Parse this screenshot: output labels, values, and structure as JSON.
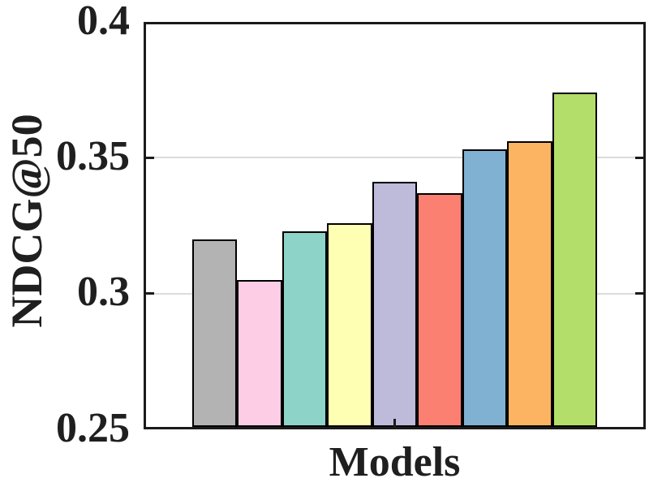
{
  "chart_data": {
    "type": "bar",
    "title": "",
    "xlabel": "Models",
    "ylabel": "NDCG@50",
    "ylim": [
      0.25,
      0.4
    ],
    "yticks": [
      0.25,
      0.3,
      0.35,
      0.4
    ],
    "ytick_labels": [
      "0.25",
      "0.3",
      "0.35",
      "0.4"
    ],
    "grid": "horizontal-major",
    "legend_position": "none",
    "categories": [
      "",
      "",
      "",
      "",
      "",
      "",
      "",
      "",
      ""
    ],
    "values": [
      0.32,
      0.305,
      0.323,
      0.326,
      0.341,
      0.337,
      0.353,
      0.356,
      0.374
    ],
    "bar_colors": [
      "#b3b3b3",
      "#fccde5",
      "#8dd3c7",
      "#ffffb3",
      "#bebada",
      "#fb8072",
      "#80b1d3",
      "#fdb462",
      "#b3de69"
    ],
    "bar_edge_color": "#000000",
    "axis_color": "#1a1a1a",
    "grid_color": "#dcdcdc",
    "background_color": "#ffffff",
    "text_color": "#1f1f1f"
  }
}
